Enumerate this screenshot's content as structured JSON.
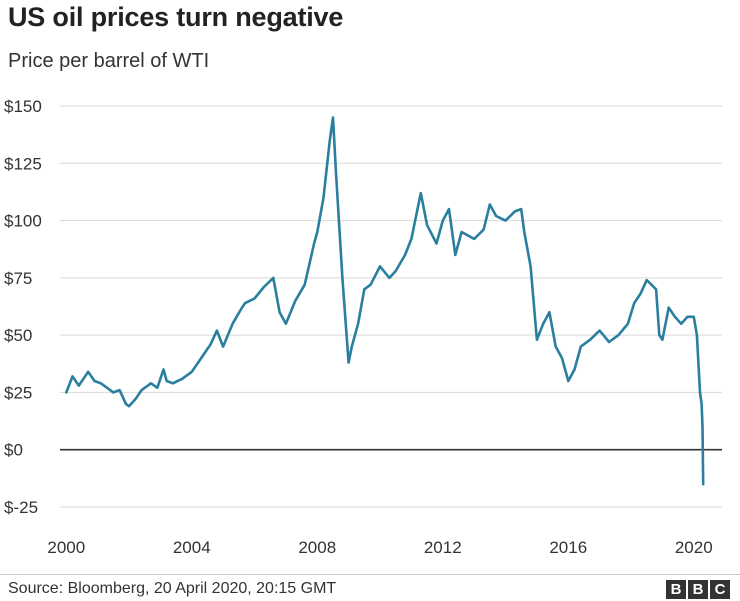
{
  "title": "US oil prices turn negative",
  "subtitle": "Price per barrel of WTI",
  "source": "Source: Bloomberg, 20 April 2020, 20:15 GMT",
  "logo": {
    "letters": [
      "B",
      "B",
      "C"
    ]
  },
  "colors": {
    "line": "#2a7f9e",
    "grid": "#d9d9d9",
    "zero_line": "#333333",
    "text": "#333333"
  },
  "chart_data": {
    "type": "line",
    "xlim": [
      1999.8,
      2020.9
    ],
    "ylim": [
      -25,
      150
    ],
    "x_ticks": [
      2000,
      2004,
      2008,
      2012,
      2016,
      2020
    ],
    "x_tick_labels": [
      "2000",
      "2004",
      "2008",
      "2012",
      "2016",
      "2020"
    ],
    "y_ticks": [
      -25,
      0,
      25,
      50,
      75,
      100,
      125,
      150
    ],
    "y_tick_labels": [
      "$-25",
      "$0",
      "$25",
      "$50",
      "$75",
      "$100",
      "$125",
      "$150"
    ],
    "grid": true,
    "series": [
      {
        "x": [
          2000.0,
          2000.2,
          2000.4,
          2000.7,
          2000.9,
          2001.1,
          2001.3,
          2001.5,
          2001.7,
          2001.9,
          2002.0,
          2002.2,
          2002.4,
          2002.7,
          2002.9,
          2003.1,
          2003.2,
          2003.4,
          2003.7,
          2004.0,
          2004.3,
          2004.6,
          2004.8,
          2005.0,
          2005.3,
          2005.6,
          2005.7,
          2006.0,
          2006.3,
          2006.6,
          2006.8,
          2007.0,
          2007.3,
          2007.6,
          2007.9,
          2008.0,
          2008.2,
          2008.4,
          2008.5,
          2008.6,
          2008.8,
          2009.0,
          2009.1,
          2009.3,
          2009.5,
          2009.7,
          2010.0,
          2010.3,
          2010.5,
          2010.8,
          2011.0,
          2011.3,
          2011.5,
          2011.8,
          2012.0,
          2012.2,
          2012.4,
          2012.6,
          2013.0,
          2013.3,
          2013.5,
          2013.7,
          2014.0,
          2014.3,
          2014.5,
          2014.6,
          2014.8,
          2015.0,
          2015.2,
          2015.4,
          2015.6,
          2015.8,
          2016.0,
          2016.2,
          2016.4,
          2016.7,
          2017.0,
          2017.3,
          2017.6,
          2017.9,
          2018.1,
          2018.3,
          2018.5,
          2018.8,
          2018.9,
          2019.0,
          2019.2,
          2019.4,
          2019.6,
          2019.8,
          2020.0,
          2020.1,
          2020.2,
          2020.25,
          2020.28,
          2020.3
        ],
        "values": [
          25,
          32,
          28,
          34,
          30,
          29,
          27,
          25,
          26,
          20,
          19,
          22,
          26,
          29,
          27,
          35,
          30,
          29,
          31,
          34,
          40,
          46,
          52,
          45,
          55,
          62,
          64,
          66,
          71,
          75,
          60,
          55,
          65,
          72,
          90,
          95,
          110,
          135,
          145,
          120,
          75,
          38,
          45,
          55,
          70,
          72,
          80,
          75,
          78,
          85,
          92,
          112,
          98,
          90,
          100,
          105,
          85,
          95,
          92,
          96,
          107,
          102,
          100,
          104,
          105,
          95,
          80,
          48,
          55,
          60,
          45,
          40,
          30,
          35,
          45,
          48,
          52,
          47,
          50,
          55,
          64,
          68,
          74,
          70,
          50,
          48,
          62,
          58,
          55,
          58,
          58,
          50,
          25,
          20,
          10,
          -15
        ]
      }
    ]
  }
}
